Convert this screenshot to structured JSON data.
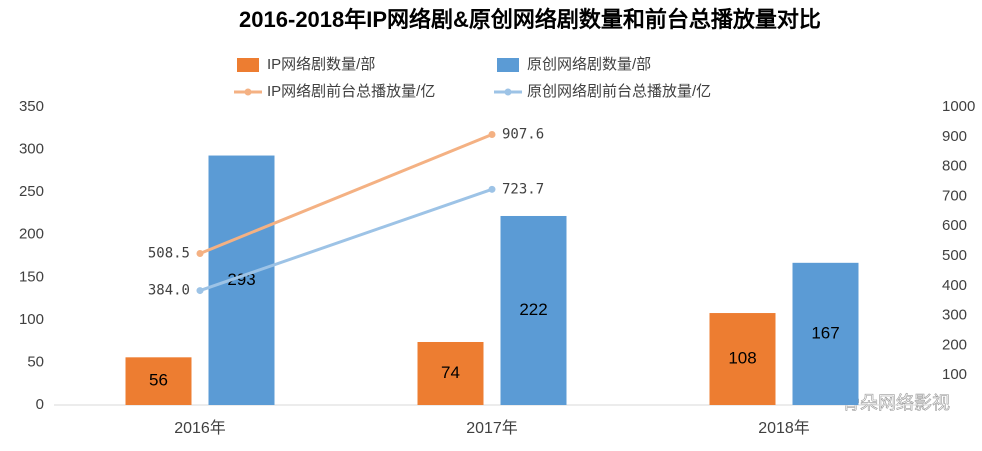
{
  "chart_data": {
    "type": "bar",
    "title": "2016-2018年IP网络剧&原创网络剧数量和前台总播放量对比",
    "categories": [
      "2016年",
      "2017年",
      "2018年"
    ],
    "series": [
      {
        "name": "IP网络剧数量/部",
        "color": "#ed7d31",
        "type": "bar",
        "values": [
          56,
          74,
          108
        ]
      },
      {
        "name": "原创网络剧数量/部",
        "color": "#5b9bd5",
        "type": "bar",
        "values": [
          293,
          222,
          167
        ]
      },
      {
        "name": "IP网络剧前台总播放量/亿",
        "color": "#f4b183",
        "type": "line",
        "axis": "y2",
        "values": [
          508.5,
          907.6,
          null
        ],
        "value_labels": [
          "508.5",
          "907.6",
          null
        ]
      },
      {
        "name": "原创网络剧前台总播放量/亿",
        "color": "#9dc3e6",
        "type": "line",
        "axis": "y2",
        "values": [
          384.0,
          723.7,
          null
        ],
        "value_labels": [
          "384.0",
          "723.7",
          null
        ]
      }
    ],
    "ylim": [
      0,
      350
    ],
    "yticks": [
      0,
      50,
      100,
      150,
      200,
      250,
      300,
      350
    ],
    "y2lim": [
      0,
      1000
    ],
    "y2ticks": [
      100,
      200,
      300,
      400,
      500,
      600,
      700,
      800,
      900,
      1000
    ],
    "annotations": [
      "骨朵网络影视"
    ]
  }
}
